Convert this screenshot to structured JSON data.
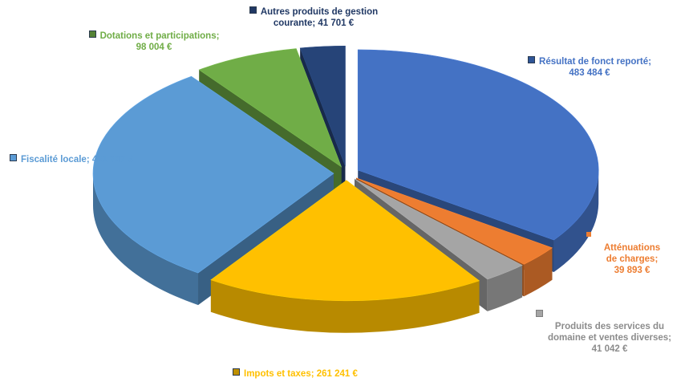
{
  "chart_data": {
    "type": "pie",
    "slices": [
      {
        "label": "Résultat de fonct reporté",
        "value": 483484,
        "text": "483 484 €",
        "color": "#4472c4"
      },
      {
        "label": "Atténuations de charges",
        "value": 39893,
        "text": "39 893 €",
        "color": "#ed7d31"
      },
      {
        "label": "Produits des services du domaine et ventes diverses",
        "value": 41042,
        "text": "41 042 €",
        "color": "#a5a5a5"
      },
      {
        "label": "Impots et taxes",
        "value": 261241,
        "text": "261 241 €",
        "color": "#ffc000"
      },
      {
        "label": "Fiscalité locale",
        "value": 421747,
        "text": "421 747 €",
        "color": "#5b9bd5"
      },
      {
        "label": "Dotations et participations",
        "value": 98004,
        "text": "98 004 €",
        "color": "#70ad47"
      },
      {
        "label": "Autres produits de gestion courante",
        "value": 41701,
        "text": "41 701 €",
        "color": "#264478"
      }
    ]
  },
  "labels": {
    "autres_1": "Autres produits de gestion",
    "autres_2": "courante; 41 701 €",
    "dotations_1": "Dotations et participations;",
    "dotations_2": "98 004 €",
    "resultat_1": "Résultat de fonct reporté;",
    "resultat_2": "483 484 €",
    "fiscalite": "Fiscalité locale; 421 747 €",
    "attenuations_1": "Atténuations",
    "attenuations_2": "de charges;",
    "attenuations_3": "39 893 €",
    "produits_1": "Produits des services du",
    "produits_2": "domaine et ventes diverses;",
    "produits_3": "41 042 €",
    "impots": "Impots et taxes; 261 241 €"
  }
}
